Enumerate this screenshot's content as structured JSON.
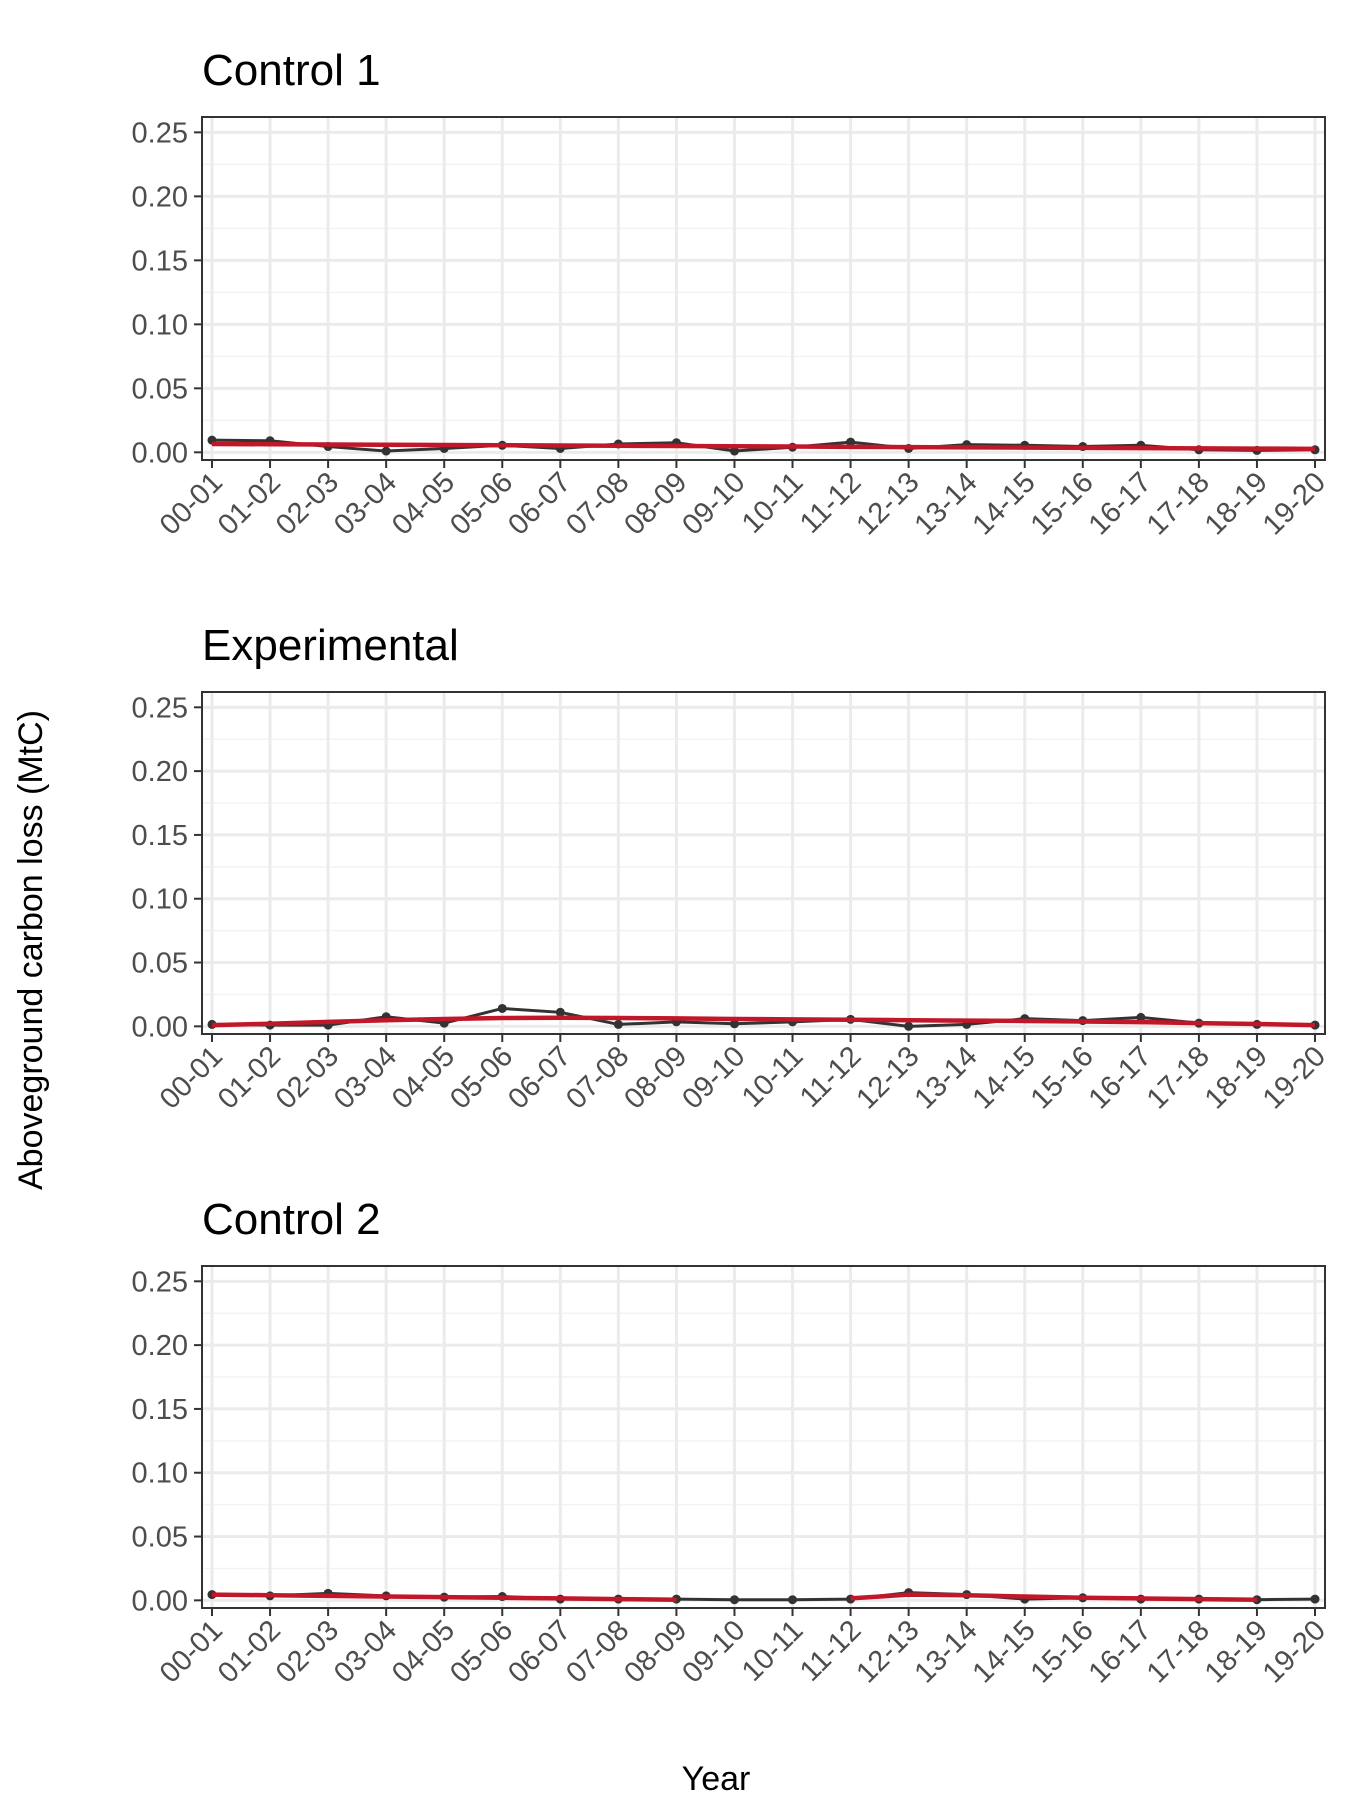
{
  "chart_data": {
    "type": "line",
    "ylabel": "Aboveground carbon loss (MtC)",
    "xlabel": "Year",
    "categories": [
      "00-01",
      "01-02",
      "02-03",
      "03-04",
      "04-05",
      "05-06",
      "06-07",
      "07-08",
      "08-09",
      "09-10",
      "10-11",
      "11-12",
      "12-13",
      "13-14",
      "14-15",
      "15-16",
      "16-17",
      "17-18",
      "18-19",
      "19-20"
    ],
    "yticks": [
      "0.00",
      "0.05",
      "0.10",
      "0.15",
      "0.20",
      "0.25"
    ],
    "ylim": [
      -0.006,
      0.262
    ],
    "grid": true,
    "colors": {
      "observed": "#333333",
      "trend": "#c0182a"
    },
    "panels": [
      {
        "title": "Control 1",
        "observed": [
          0.0095,
          0.009,
          0.0045,
          0.001,
          0.003,
          0.0055,
          0.003,
          0.0065,
          0.0075,
          0.001,
          0.004,
          0.008,
          0.003,
          0.006,
          0.0055,
          0.0045,
          0.0055,
          0.002,
          0.0015,
          0.002
        ],
        "trend": [
          0.0065,
          0.0063,
          0.0061,
          0.0059,
          0.0057,
          0.0055,
          0.0053,
          0.0051,
          0.0049,
          0.0047,
          0.0045,
          0.0043,
          0.0041,
          0.0039,
          0.0037,
          0.0035,
          0.0033,
          0.0031,
          0.0029,
          0.0027
        ]
      },
      {
        "title": "Experimental",
        "observed": [
          0.0015,
          0.001,
          0.001,
          0.0075,
          0.0025,
          0.014,
          0.011,
          0.0015,
          0.0035,
          0.002,
          0.0035,
          0.0055,
          0.0,
          0.0015,
          0.006,
          0.0045,
          0.007,
          0.0025,
          0.0015,
          0.001
        ],
        "trend": [
          0.001,
          0.002,
          0.0035,
          0.0048,
          0.0058,
          0.0065,
          0.0067,
          0.0065,
          0.0062,
          0.0058,
          0.0055,
          0.0052,
          0.0048,
          0.0045,
          0.0042,
          0.0038,
          0.0033,
          0.0025,
          0.0018,
          0.001
        ]
      },
      {
        "title": "Control 2",
        "observed": [
          0.0045,
          0.0035,
          0.0055,
          0.0035,
          0.0025,
          0.003,
          0.001,
          0.001,
          0.001,
          0.0005,
          0.0005,
          0.001,
          0.006,
          0.0045,
          0.001,
          0.002,
          0.001,
          0.001,
          0.0005,
          0.001
        ],
        "trend": [
          0.0045,
          0.004,
          0.0035,
          0.003,
          0.0025,
          0.002,
          0.0015,
          0.001,
          0.0005,
          null,
          null,
          0.0015,
          0.0045,
          0.004,
          0.003,
          0.002,
          0.0015,
          0.001,
          0.0005,
          null
        ]
      }
    ]
  }
}
